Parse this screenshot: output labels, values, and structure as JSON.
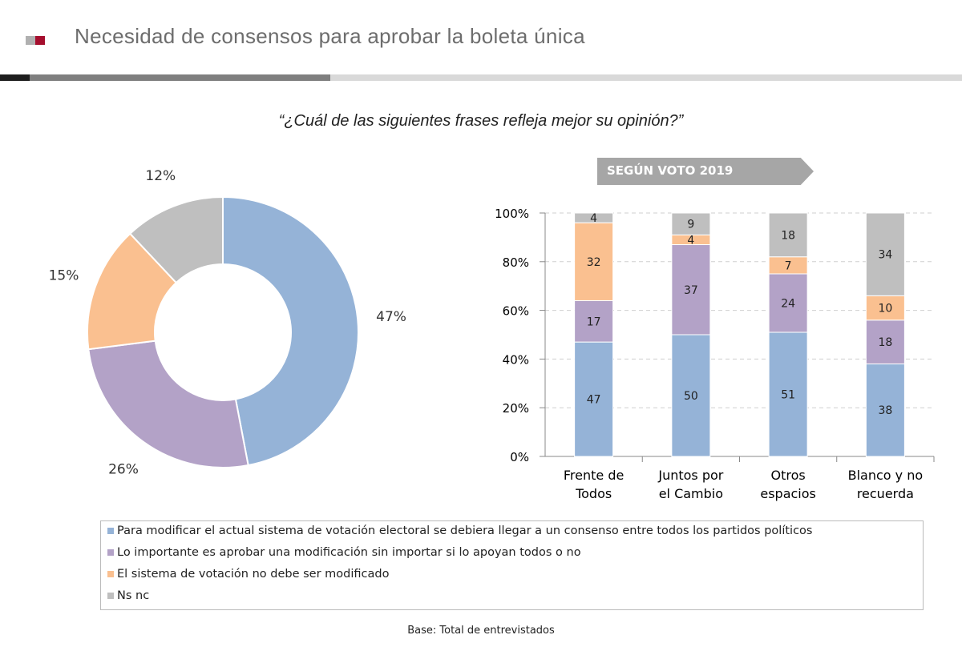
{
  "header": {
    "title": "Necesidad de consensos para aprobar la boleta única"
  },
  "question": "“¿Cuál de las siguientes frases refleja mejor su opinión?”",
  "banner": "SEGÚN VOTO 2019",
  "colors": {
    "blue": "#95b3d7",
    "purple": "#b3a2c7",
    "orange": "#fac090",
    "gray": "#bfbfbf",
    "brand": "#a50e2d"
  },
  "legend": [
    {
      "label": "Para modificar el actual sistema de votación electoral se debiera llegar a un consenso entre todos los partidos políticos",
      "color": "#95b3d7"
    },
    {
      "label": "Lo importante es aprobar una modificación sin importar si lo apoyan todos o no",
      "color": "#b3a2c7"
    },
    {
      "label": "El sistema de votación no debe ser modificado",
      "color": "#fac090"
    },
    {
      "label": "Ns nc",
      "color": "#bfbfbf"
    }
  ],
  "footer": "Base: Total de entrevistados",
  "chart_data": [
    {
      "type": "pie",
      "donut": true,
      "values": [
        47,
        26,
        15,
        12
      ],
      "labels": [
        "47%",
        "26%",
        "15%",
        "12%"
      ],
      "colors": [
        "#95b3d7",
        "#b3a2c7",
        "#fac090",
        "#bfbfbf"
      ]
    },
    {
      "type": "bar",
      "stacked": true,
      "categories": [
        [
          "Frente de",
          "Todos"
        ],
        [
          "Juntos por",
          "el Cambio"
        ],
        [
          "Otros",
          "espacios"
        ],
        [
          "Blanco y no",
          "recuerda"
        ]
      ],
      "series": [
        {
          "values": [
            47,
            50,
            51,
            38
          ],
          "color": "#95b3d7"
        },
        {
          "values": [
            17,
            37,
            24,
            18
          ],
          "color": "#b3a2c7"
        },
        {
          "values": [
            32,
            4,
            7,
            10
          ],
          "color": "#fac090"
        },
        {
          "values": [
            4,
            9,
            18,
            34
          ],
          "color": "#bfbfbf"
        }
      ],
      "ylim": [
        0,
        100
      ],
      "yticks": [
        "0%",
        "20%",
        "40%",
        "60%",
        "80%",
        "100%"
      ],
      "grid": true
    }
  ]
}
